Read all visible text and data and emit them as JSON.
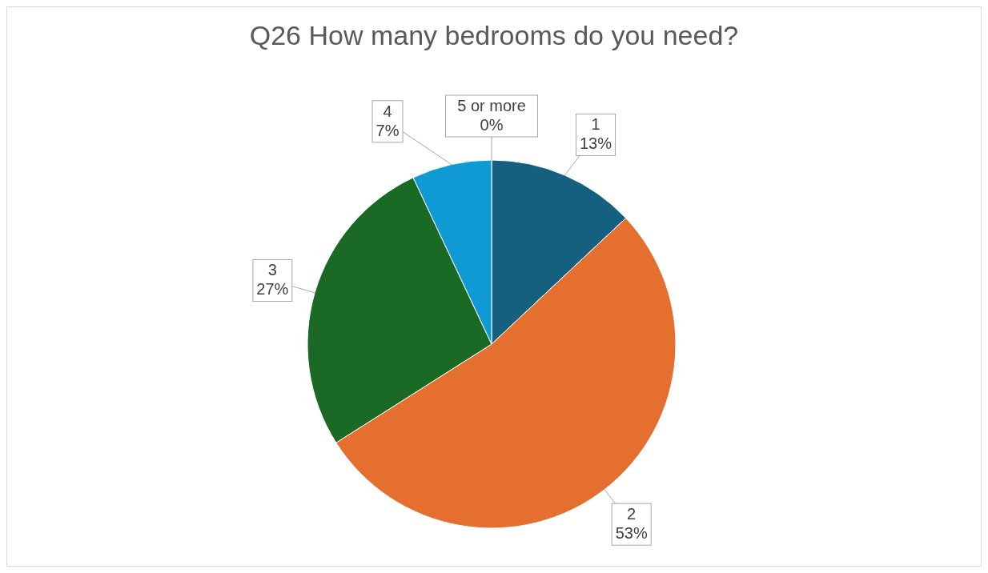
{
  "chart_data": {
    "type": "pie",
    "title": "Q26 How many bedrooms do you need?",
    "categories": [
      "1",
      "2",
      "3",
      "4",
      "5 or more"
    ],
    "values": [
      13,
      53,
      27,
      7,
      0
    ],
    "value_labels": [
      "13%",
      "53%",
      "27%",
      "7%",
      "0%"
    ],
    "colors": [
      "#15607f",
      "#e46f2e",
      "#1a6a25",
      "#0f9ad4",
      "#7f7f7f"
    ],
    "legend": false
  }
}
